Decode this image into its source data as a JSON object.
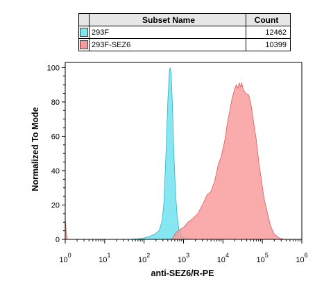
{
  "legend": {
    "headers": [
      "Subset Name",
      "Count"
    ],
    "rows": [
      {
        "name": "293F",
        "count": "12462",
        "color": "#7fe6f2"
      },
      {
        "name": "293F-SEZ6",
        "count": "10399",
        "color": "#f99a9a"
      }
    ]
  },
  "chart_data": {
    "type": "area",
    "title": "",
    "xlabel": "anti-SEZ6/R-PE",
    "ylabel": "Normalized To Mode",
    "x_scale": "log",
    "xlim": [
      1,
      1000000
    ],
    "ylim": [
      0,
      103
    ],
    "x_tick_labels": [
      "10^0",
      "10^1",
      "10^2",
      "10^3",
      "10^4",
      "10^5",
      "10^6"
    ],
    "y_ticks": [
      0,
      20,
      40,
      60,
      80,
      100
    ],
    "grid": false,
    "legend_position": "top",
    "series": [
      {
        "name": "293F",
        "fill": "#7fe6f2",
        "stroke": "#2fb3c6",
        "points": [
          [
            40,
            0
          ],
          [
            90,
            0.5
          ],
          [
            150,
            2
          ],
          [
            200,
            3.5
          ],
          [
            240,
            5
          ],
          [
            280,
            10
          ],
          [
            315,
            20
          ],
          [
            345,
            40
          ],
          [
            372,
            60
          ],
          [
            398,
            80
          ],
          [
            415,
            88
          ],
          [
            430,
            95
          ],
          [
            445,
            99
          ],
          [
            462,
            100
          ],
          [
            480,
            97
          ],
          [
            500,
            90
          ],
          [
            530,
            75
          ],
          [
            570,
            50
          ],
          [
            620,
            30
          ],
          [
            680,
            15
          ],
          [
            760,
            6
          ],
          [
            900,
            2
          ],
          [
            1200,
            0.5
          ],
          [
            2000,
            0
          ]
        ]
      },
      {
        "name": "293F-SEZ6",
        "fill": "#f99a9a",
        "stroke": "#e05656",
        "points": [
          [
            1,
            12
          ],
          [
            1.05,
            6
          ],
          [
            1.12,
            0
          ],
          [
            500,
            0
          ],
          [
            650,
            4
          ],
          [
            850,
            6
          ],
          [
            1000,
            7
          ],
          [
            1300,
            10
          ],
          [
            1700,
            12
          ],
          [
            2300,
            15
          ],
          [
            3000,
            20
          ],
          [
            4000,
            26
          ],
          [
            5000,
            28
          ],
          [
            6200,
            34
          ],
          [
            7500,
            43
          ],
          [
            9000,
            48
          ],
          [
            11000,
            57
          ],
          [
            13000,
            68
          ],
          [
            15000,
            75
          ],
          [
            17000,
            82
          ],
          [
            19000,
            86
          ],
          [
            20000,
            88
          ],
          [
            22000,
            90
          ],
          [
            24000,
            88
          ],
          [
            26000,
            91
          ],
          [
            28000,
            89
          ],
          [
            30000,
            91
          ],
          [
            33000,
            87
          ],
          [
            38000,
            85
          ],
          [
            45000,
            84
          ],
          [
            52000,
            78
          ],
          [
            60000,
            68
          ],
          [
            70000,
            58
          ],
          [
            80000,
            46
          ],
          [
            95000,
            34
          ],
          [
            110000,
            24
          ],
          [
            135000,
            15
          ],
          [
            160000,
            8
          ],
          [
            200000,
            3
          ],
          [
            280000,
            0.5
          ],
          [
            400000,
            0
          ]
        ]
      }
    ]
  }
}
